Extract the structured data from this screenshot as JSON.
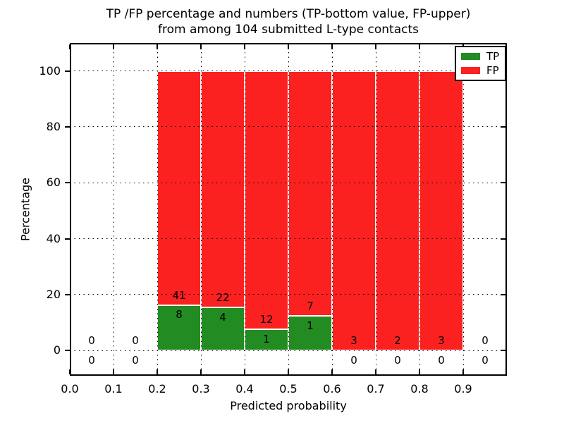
{
  "chart_data": {
    "type": "bar",
    "stacked": true,
    "title_line1": "TP /FP percentage and numbers (TP-bottom value, FP-upper)",
    "title_line2": "from among 104 submitted L-type contacts",
    "total_submitted_contacts": 104,
    "xlabel": "Predicted probability",
    "ylabel": "Percentage",
    "xlim": [
      0,
      1.0
    ],
    "ylim": [
      -9,
      110
    ],
    "xticks": [
      0.0,
      0.1,
      0.2,
      0.3,
      0.4,
      0.5,
      0.6,
      0.7,
      0.8,
      0.9
    ],
    "xtick_labels": [
      "0.0",
      "0.1",
      "0.2",
      "0.3",
      "0.4",
      "0.5",
      "0.6",
      "0.7",
      "0.8",
      "0.9"
    ],
    "yticks": [
      0,
      20,
      40,
      60,
      80,
      100
    ],
    "ytick_labels": [
      "0",
      "20",
      "40",
      "60",
      "80",
      "100"
    ],
    "grid": "dotted",
    "grid_on_top": true,
    "bin_edges": [
      0.0,
      0.1,
      0.2,
      0.3,
      0.4,
      0.5,
      0.6,
      0.7,
      0.8,
      0.9,
      1.0
    ],
    "label_offset_pct": 3.5,
    "series": [
      {
        "name": "TP",
        "color": "#228B22",
        "counts": [
          0,
          0,
          8,
          4,
          1,
          1,
          0,
          0,
          0,
          0
        ],
        "pct": [
          0,
          0,
          16.33,
          15.38,
          7.69,
          12.5,
          0,
          0,
          0,
          0
        ]
      },
      {
        "name": "FP",
        "color": "#fb2121",
        "counts": [
          0,
          0,
          41,
          22,
          12,
          7,
          3,
          2,
          3,
          0
        ],
        "pct": [
          0,
          0,
          83.67,
          84.62,
          92.31,
          87.5,
          100,
          100,
          100,
          0
        ]
      }
    ],
    "legend": {
      "position": "upper right",
      "entries": [
        {
          "label": "TP",
          "color": "#228B22"
        },
        {
          "label": "FP",
          "color": "#fb2121"
        }
      ]
    }
  }
}
